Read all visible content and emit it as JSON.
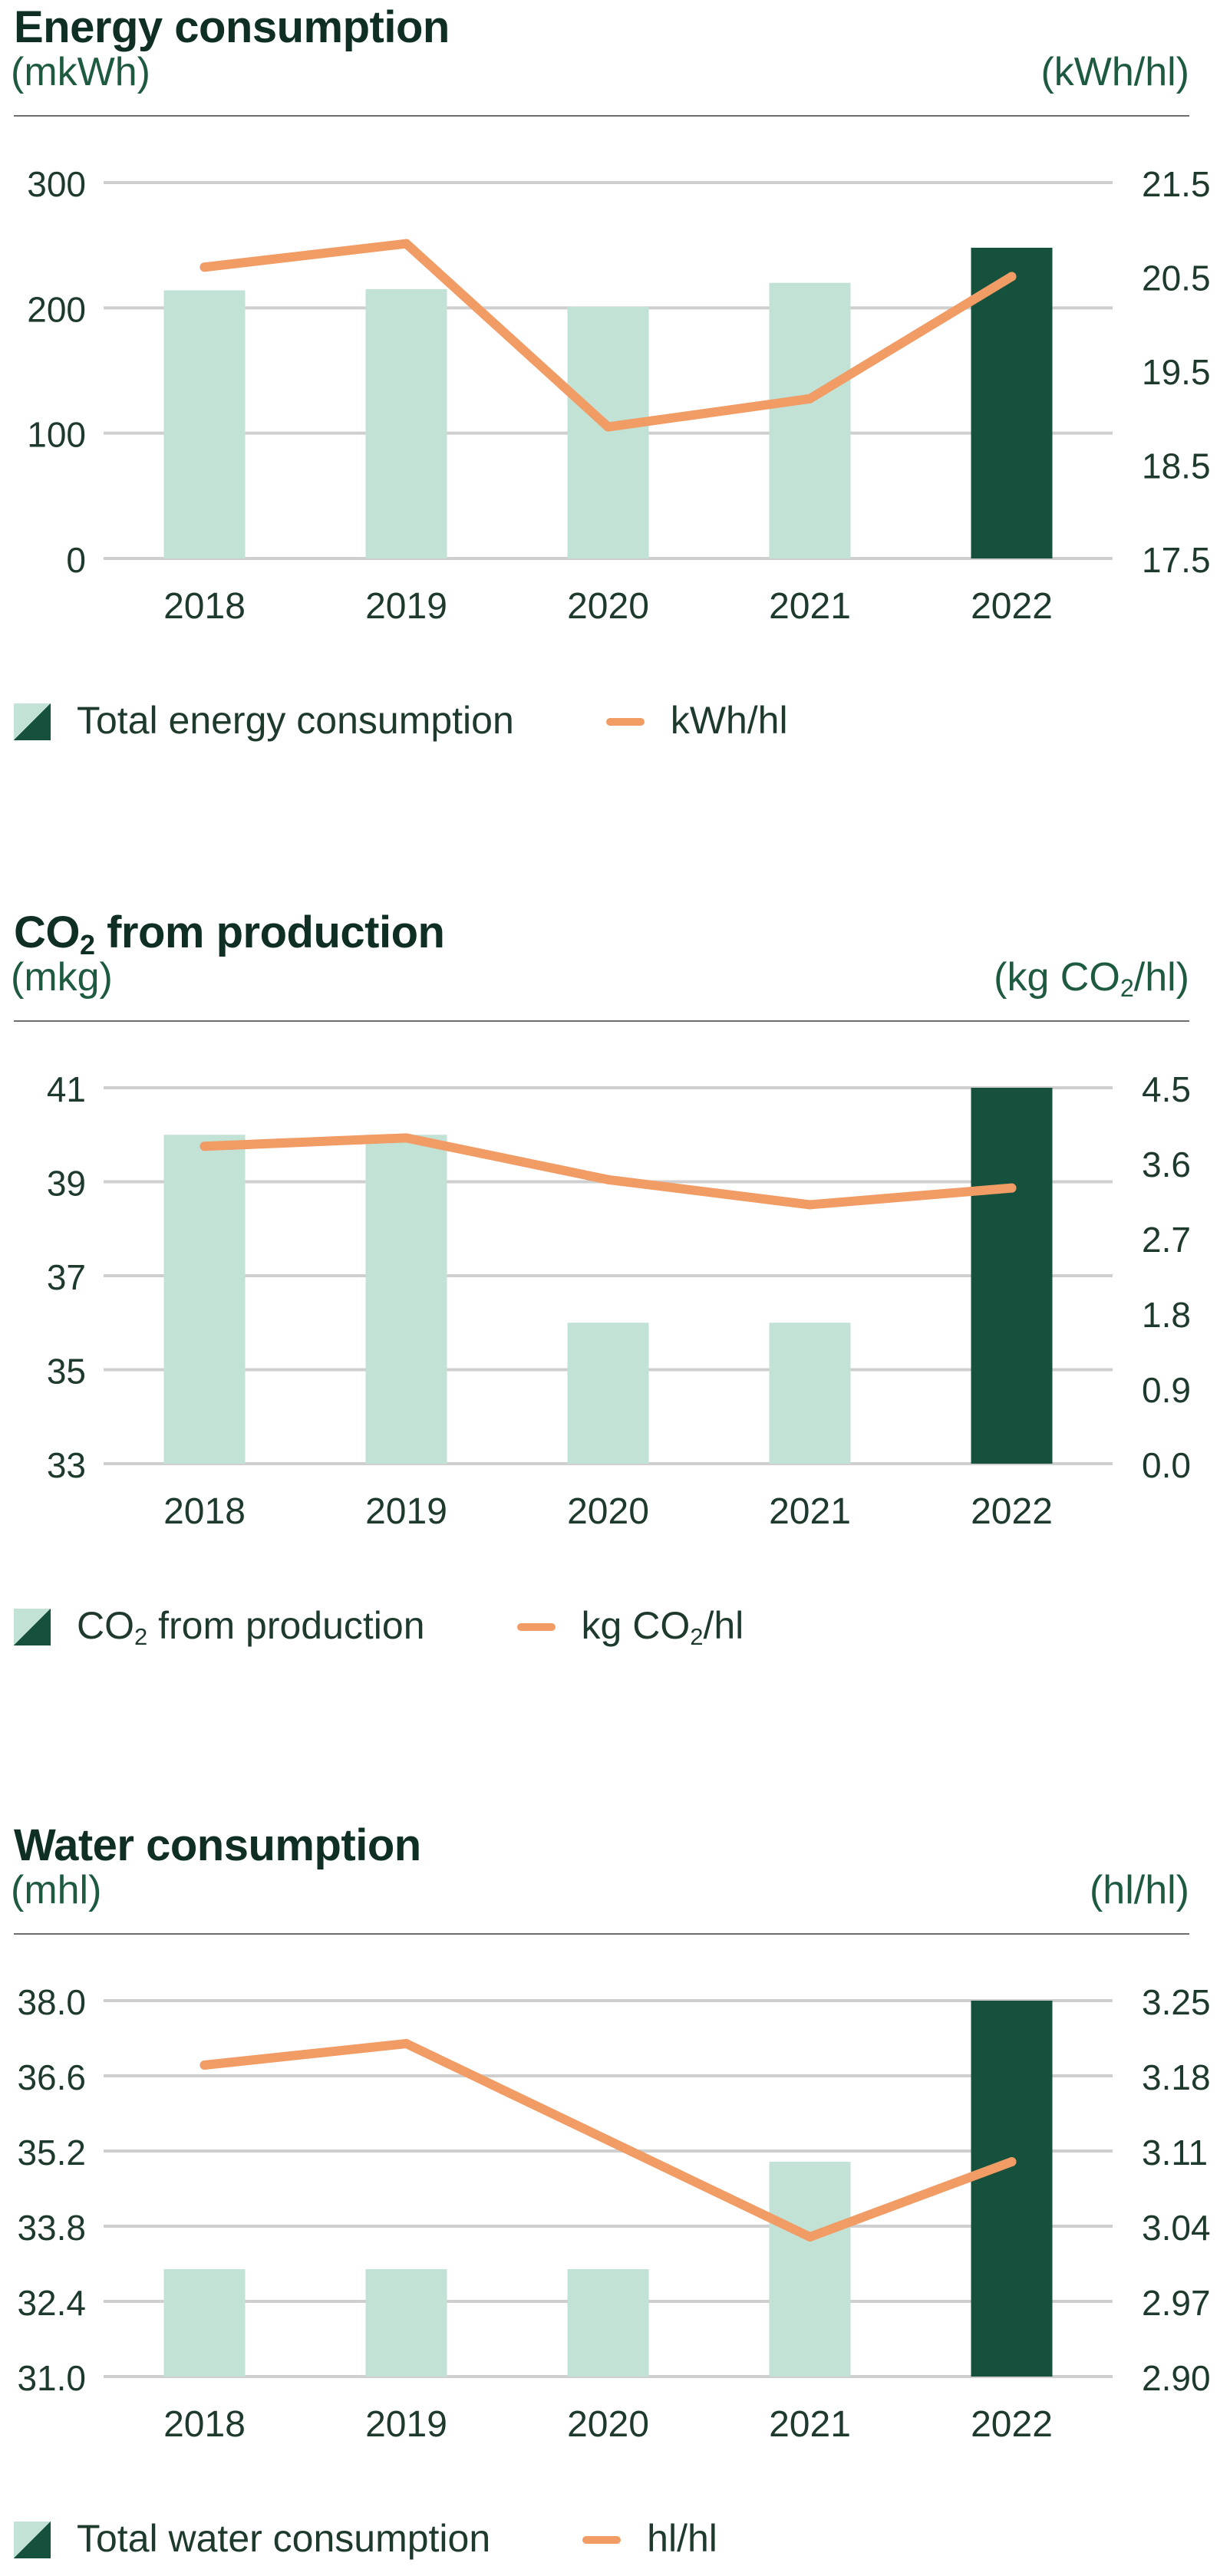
{
  "colors": {
    "bar_light": "#c3e2d6",
    "bar_highlight": "#16513d",
    "line": "#f19b65",
    "grid": "#cfcfcf",
    "title": "#0f2f24",
    "unit": "#1e5a40"
  },
  "panels": [
    {
      "title": "Energy consumption",
      "title_sub": "",
      "title_rest": "",
      "unit_left": "(mkWh)",
      "unit_right_pre": "(kWh/hl)",
      "unit_right_sub": "",
      "unit_right_post": "",
      "legend_bar_pre": "Total energy consumption",
      "legend_bar_sub": "",
      "legend_bar_post": "",
      "legend_line_pre": "kWh/hl",
      "legend_line_sub": "",
      "legend_line_post": ""
    },
    {
      "title": "CO",
      "title_sub": "2",
      "title_rest": " from production",
      "unit_left": "(mkg)",
      "unit_right_pre": "(kg CO",
      "unit_right_sub": "2",
      "unit_right_post": "/hl)",
      "legend_bar_pre": "CO",
      "legend_bar_sub": "2",
      "legend_bar_post": " from production",
      "legend_line_pre": "kg CO",
      "legend_line_sub": "2",
      "legend_line_post": "/hl"
    },
    {
      "title": "Water consumption",
      "title_sub": "",
      "title_rest": "",
      "unit_left": "(mhl)",
      "unit_right_pre": "(hl/hl)",
      "unit_right_sub": "",
      "unit_right_post": "",
      "legend_bar_pre": "Total water consumption",
      "legend_bar_sub": "",
      "legend_bar_post": "",
      "legend_line_pre": "hl/hl",
      "legend_line_sub": "",
      "legend_line_post": ""
    }
  ],
  "chart_data": [
    {
      "type": "bar",
      "title": "Energy consumption",
      "categories": [
        "2018",
        "2019",
        "2020",
        "2021",
        "2022"
      ],
      "highlight_index": 4,
      "ylim": [
        0,
        300
      ],
      "y_ticks": [
        "300",
        "200",
        "100",
        "0"
      ],
      "y2lim": [
        17.5,
        21.5
      ],
      "y2_ticks": [
        "21.5",
        "20.5",
        "19.5",
        "18.5",
        "17.5"
      ],
      "series": [
        {
          "name": "Total energy consumption",
          "kind": "bar",
          "axis": "left",
          "values": [
            214,
            215,
            201,
            220,
            248
          ]
        },
        {
          "name": "kWh/hl",
          "kind": "line",
          "axis": "right",
          "values": [
            20.6,
            20.85,
            18.9,
            19.2,
            20.5
          ]
        }
      ]
    },
    {
      "type": "bar",
      "title": "CO2 from production",
      "categories": [
        "2018",
        "2019",
        "2020",
        "2021",
        "2022"
      ],
      "highlight_index": 4,
      "ylim": [
        33,
        41
      ],
      "y_ticks": [
        "41",
        "39",
        "37",
        "35",
        "33"
      ],
      "y2lim": [
        0.0,
        4.5
      ],
      "y2_ticks": [
        "4.5",
        "3.6",
        "2.7",
        "1.8",
        "0.9",
        "0.0"
      ],
      "series": [
        {
          "name": "CO2 from production",
          "kind": "bar",
          "axis": "left",
          "values": [
            40,
            40,
            36,
            36,
            41
          ]
        },
        {
          "name": "kg CO2/hl",
          "kind": "line",
          "axis": "right",
          "values": [
            3.8,
            3.9,
            3.4,
            3.1,
            3.3
          ]
        }
      ]
    },
    {
      "type": "bar",
      "title": "Water consumption",
      "categories": [
        "2018",
        "2019",
        "2020",
        "2021",
        "2022"
      ],
      "highlight_index": 4,
      "ylim": [
        31.0,
        38.0
      ],
      "y_ticks": [
        "38.0",
        "36.6",
        "35.2",
        "33.8",
        "32.4",
        "31.0"
      ],
      "y2lim": [
        2.9,
        3.25
      ],
      "y2_ticks": [
        "3.25",
        "3.18",
        "3.11",
        "3.04",
        "2.97",
        "2.90"
      ],
      "series": [
        {
          "name": "Total water consumption",
          "kind": "bar",
          "axis": "left",
          "values": [
            33.0,
            33.0,
            33.0,
            35.0,
            38.0
          ]
        },
        {
          "name": "hl/hl",
          "kind": "line",
          "axis": "right",
          "values": [
            3.19,
            3.21,
            3.12,
            3.03,
            3.1
          ]
        }
      ]
    }
  ]
}
